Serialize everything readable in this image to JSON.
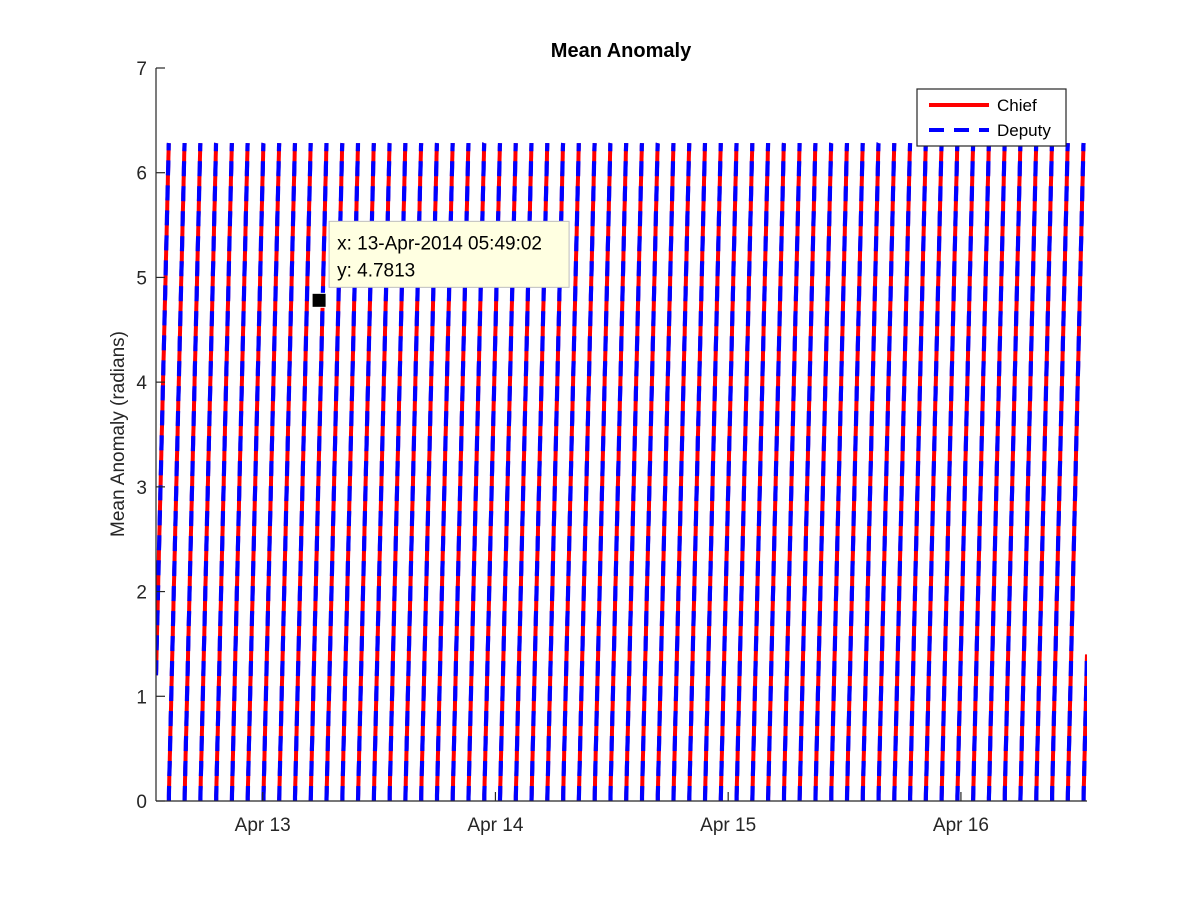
{
  "chart_data": {
    "type": "line",
    "title": "Mean Anomaly",
    "xlabel": "",
    "ylabel": "Mean Anomaly (radians)",
    "x_range": [
      "2014-04-12 13:00",
      "2014-04-16 13:00"
    ],
    "xticks": [
      {
        "label": "Apr 13",
        "x": "2014-04-13 00:00"
      },
      {
        "label": "Apr 14",
        "x": "2014-04-14 00:00"
      },
      {
        "label": "Apr 15",
        "x": "2014-04-15 00:00"
      },
      {
        "label": "Apr 16",
        "x": "2014-04-16 00:00"
      }
    ],
    "ylim": [
      0,
      7
    ],
    "yticks": [
      "0",
      "1",
      "2",
      "3",
      "4",
      "5",
      "6",
      "7"
    ],
    "grid": false,
    "legend_position": "top-right",
    "series": [
      {
        "name": "Chief",
        "color": "#ff0000",
        "style": "solid",
        "pattern": "sawtooth",
        "min": 0,
        "max": 6.2832,
        "start": {
          "x": "2014-04-12 13:00",
          "y": 1.2
        },
        "end": {
          "x": "2014-04-16 13:00",
          "y": 1.4
        },
        "wraps_per_day": 14.8
      },
      {
        "name": "Deputy",
        "color": "#0000ff",
        "style": "dashed",
        "pattern": "sawtooth",
        "min": 0,
        "max": 6.2832,
        "start": {
          "x": "2014-04-12 13:00",
          "y": 1.2
        },
        "end": {
          "x": "2014-04-16 13:00",
          "y": 1.4
        },
        "wraps_per_day": 14.8
      }
    ],
    "annotation": {
      "x_text": "x: 13-Apr-2014 05:49:02",
      "y_text": "y: 4.7813",
      "x": "2014-04-13 05:49:02",
      "y": 4.7813
    }
  }
}
